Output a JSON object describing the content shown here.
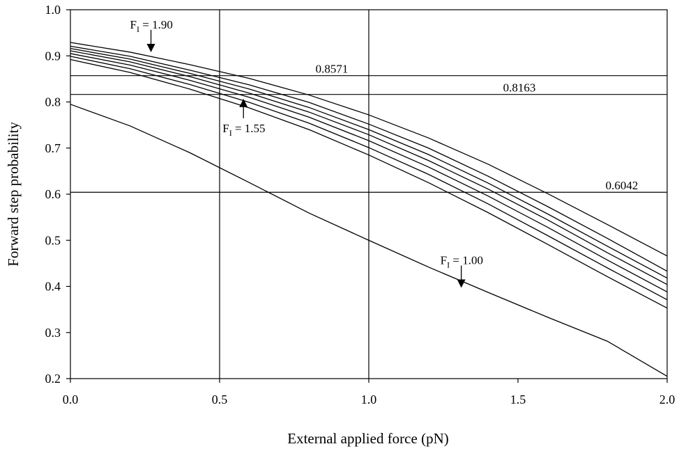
{
  "chart_data": {
    "type": "line",
    "title": "",
    "xlabel": "External applied force (pN)",
    "ylabel": "Forward step probability",
    "xlim": [
      0,
      2
    ],
    "ylim": [
      0.2,
      1.0
    ],
    "grid": "vertical lines at 0.5 and 1.0",
    "x_ticks": [
      "0.0",
      "0.5",
      "1.0",
      "1.5",
      "2.0"
    ],
    "y_ticks": [
      "0.2",
      "0.3",
      "0.4",
      "0.5",
      "0.6",
      "0.7",
      "0.8",
      "0.9",
      "1.0"
    ],
    "x": [
      0,
      0.2,
      0.4,
      0.6,
      0.8,
      1.0,
      1.2,
      1.4,
      1.6,
      1.8,
      2.0
    ],
    "series": [
      {
        "values": [
          0.929,
          0.908,
          0.881,
          0.851,
          0.815,
          0.772,
          0.722,
          0.665,
          0.601,
          0.534,
          0.466
        ]
      },
      {
        "values": [
          0.921,
          0.899,
          0.869,
          0.837,
          0.799,
          0.752,
          0.7,
          0.639,
          0.573,
          0.504,
          0.433
        ]
      },
      {
        "values": [
          0.916,
          0.893,
          0.862,
          0.828,
          0.788,
          0.74,
          0.686,
          0.624,
          0.557,
          0.487,
          0.418
        ]
      },
      {
        "values": [
          0.911,
          0.887,
          0.855,
          0.819,
          0.778,
          0.729,
          0.673,
          0.611,
          0.544,
          0.473,
          0.404
        ]
      },
      {
        "values": [
          0.905,
          0.88,
          0.847,
          0.81,
          0.767,
          0.716,
          0.659,
          0.596,
          0.528,
          0.457,
          0.388
        ]
      },
      {
        "values": [
          0.899,
          0.872,
          0.838,
          0.799,
          0.754,
          0.701,
          0.643,
          0.579,
          0.51,
          0.44,
          0.371
        ]
      },
      {
        "values": [
          0.892,
          0.864,
          0.828,
          0.787,
          0.74,
          0.685,
          0.625,
          0.56,
          0.491,
          0.421,
          0.353
        ]
      },
      {
        "values": [
          0.795,
          0.748,
          0.69,
          0.625,
          0.559,
          0.5,
          0.442,
          0.387,
          0.333,
          0.281,
          0.205
        ]
      }
    ],
    "reference_lines": [
      {
        "y": 0.8571,
        "label": "0.8571"
      },
      {
        "y": 0.8163,
        "label": "0.8163"
      },
      {
        "y": 0.6042,
        "label": "0.6042"
      }
    ],
    "annotations": [
      {
        "prefix": "F",
        "sub": "I",
        "text": " = 1.90",
        "x": 0.27,
        "y": 0.908,
        "arrow": "down"
      },
      {
        "prefix": "F",
        "sub": "I",
        "text": " = 1.55",
        "x": 0.58,
        "y": 0.81,
        "arrow": "up"
      },
      {
        "prefix": "F",
        "sub": "I",
        "text": " = 1.00",
        "x": 1.31,
        "y": 0.397,
        "arrow": "down"
      }
    ]
  }
}
